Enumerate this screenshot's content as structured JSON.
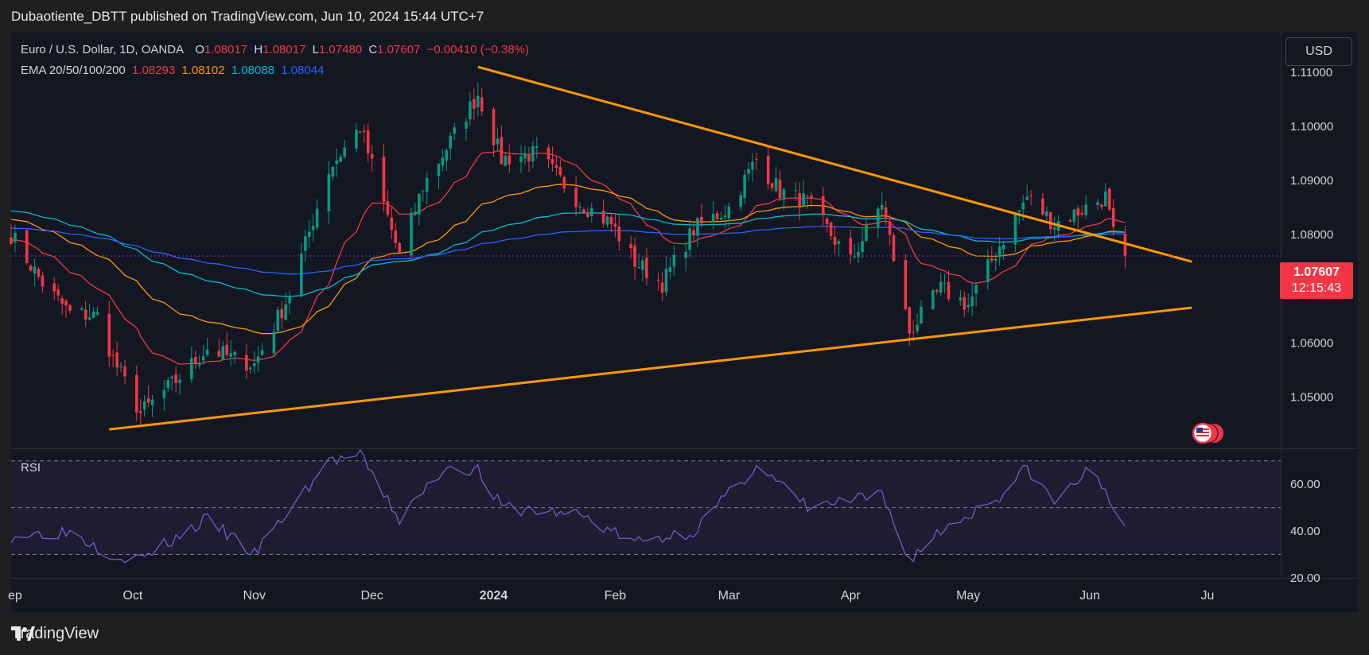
{
  "header": {
    "publisher_line": "Dubaotiente_DBTT published on TradingView.com, Jun 10, 2024 15:44 UTC+7"
  },
  "legend": {
    "symbol": "Euro / U.S. Dollar, 1D, OANDA",
    "o_label": "O",
    "o_value": "1.08017",
    "h_label": "H",
    "h_value": "1.08017",
    "l_label": "L",
    "l_value": "1.07480",
    "c_label": "C",
    "c_value": "1.07607",
    "change": "−0.00410 (−0.38%)",
    "ema_label": "EMA 20/50/100/200",
    "ema20": "1.08293",
    "ema50": "1.08102",
    "ema100": "1.08088",
    "ema200": "1.08044"
  },
  "currency_button": "USD",
  "last_price": {
    "value": "1.07607",
    "countdown": "12:15:43"
  },
  "rsi_label": "RSI",
  "footer": {
    "brand": "TradingView"
  },
  "colors": {
    "up": "#089981",
    "down": "#f23645",
    "ema20": "#f23645",
    "ema50": "#ff9800",
    "ema100": "#00bcd4",
    "ema200": "#2962ff",
    "trendline": "#ff9800",
    "rsi": "#7e57c2",
    "background": "#131722"
  },
  "chart_data": [
    {
      "type": "candlestick",
      "title": "Euro / U.S. Dollar, 1D, OANDA",
      "price_axis": [
        "1.11000",
        "1.10000",
        "1.09000",
        "1.08000",
        "1.07000",
        "1.06000",
        "1.05000"
      ],
      "price_axis_values": [
        1.11,
        1.1,
        1.09,
        1.08,
        1.07,
        1.06,
        1.05
      ],
      "ylim": [
        1.0405,
        1.1175
      ],
      "time_axis": [
        "ep",
        "Oct",
        "Nov",
        "Dec",
        "2024",
        "Feb",
        "Mar",
        "Apr",
        "May",
        "Jun",
        "Ju"
      ],
      "time_axis_dates": [
        "2023-09-01",
        "2023-10-01",
        "2023-11-01",
        "2023-12-01",
        "2024-01-01",
        "2024-02-01",
        "2024-03-01",
        "2024-04-01",
        "2024-05-01",
        "2024-06-01",
        "2024-07-01"
      ],
      "xlim": [
        "2023-08-31",
        "2024-07-01"
      ],
      "close_anchor_dates": [
        "2023-08-31",
        "2023-09-08",
        "2023-09-15",
        "2023-09-22",
        "2023-09-26",
        "2023-10-03",
        "2023-10-12",
        "2023-10-20",
        "2023-10-27",
        "2023-11-01",
        "2023-11-10",
        "2023-11-20",
        "2023-11-28",
        "2023-12-08",
        "2023-12-14",
        "2023-12-20",
        "2023-12-28",
        "2024-01-03",
        "2024-01-12",
        "2024-01-23",
        "2024-01-31",
        "2024-02-06",
        "2024-02-13",
        "2024-02-21",
        "2024-03-01",
        "2024-03-08",
        "2024-03-14",
        "2024-03-21",
        "2024-04-01",
        "2024-04-09",
        "2024-04-16",
        "2024-04-24",
        "2024-05-01",
        "2024-05-09",
        "2024-05-16",
        "2024-05-23",
        "2024-05-31",
        "2024-06-05",
        "2024-06-07",
        "2024-06-10"
      ],
      "close_anchor_values": [
        1.08,
        1.071,
        1.0655,
        1.065,
        1.057,
        1.047,
        1.053,
        1.059,
        1.057,
        1.056,
        1.069,
        1.092,
        1.1,
        1.076,
        1.089,
        1.096,
        1.106,
        1.094,
        1.095,
        1.086,
        1.082,
        1.075,
        1.071,
        1.081,
        1.085,
        1.094,
        1.088,
        1.086,
        1.075,
        1.086,
        1.062,
        1.07,
        1.067,
        1.078,
        1.087,
        1.082,
        1.085,
        1.087,
        1.08,
        1.0761
      ],
      "ema": [
        {
          "name": "EMA 20",
          "last": 1.08293
        },
        {
          "name": "EMA 50",
          "last": 1.08102
        },
        {
          "name": "EMA 100",
          "last": 1.08088
        },
        {
          "name": "EMA 200",
          "last": 1.08044
        }
      ],
      "trendlines": [
        {
          "from": [
            "2023-12-28",
            1.111
          ],
          "to": [
            "2024-06-27",
            1.075
          ]
        },
        {
          "from": [
            "2023-09-25",
            1.044
          ],
          "to": [
            "2024-06-27",
            1.0665
          ]
        }
      ],
      "last_price": 1.07607
    },
    {
      "type": "line",
      "title": "RSI",
      "y_axis": [
        "60.00",
        "40.00",
        "20.00"
      ],
      "y_axis_values": [
        60,
        40,
        20
      ],
      "bands": [
        30,
        50,
        70
      ],
      "ylim": [
        20,
        75
      ],
      "anchor_dates": [
        "2023-08-31",
        "2023-09-15",
        "2023-09-26",
        "2023-10-03",
        "2023-10-20",
        "2023-11-01",
        "2023-11-20",
        "2023-11-28",
        "2023-12-08",
        "2023-12-20",
        "2023-12-28",
        "2024-01-03",
        "2024-01-23",
        "2024-02-06",
        "2024-02-21",
        "2024-03-08",
        "2024-03-21",
        "2024-04-09",
        "2024-04-16",
        "2024-04-24",
        "2024-05-09",
        "2024-05-16",
        "2024-05-23",
        "2024-05-31",
        "2024-06-05",
        "2024-06-10"
      ],
      "anchor_values": [
        38,
        40,
        30,
        28,
        45,
        30,
        70,
        72,
        45,
        68,
        66,
        50,
        47,
        35,
        40,
        68,
        50,
        55,
        28,
        40,
        55,
        67,
        52,
        65,
        58,
        42
      ]
    }
  ]
}
